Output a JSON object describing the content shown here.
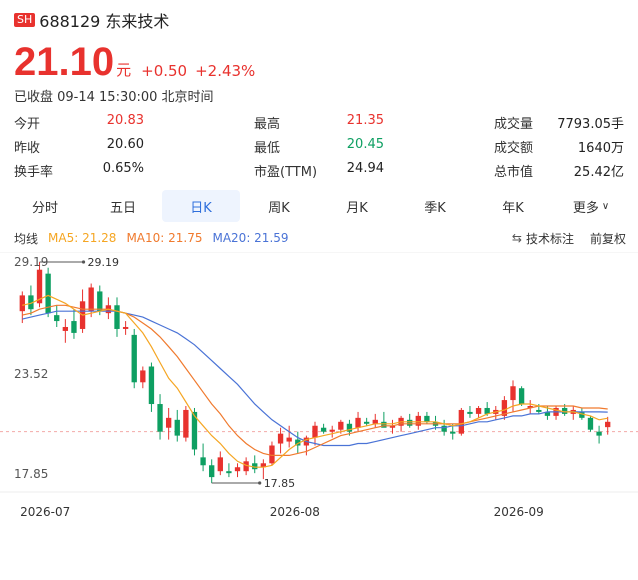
{
  "stock": {
    "market": "SH",
    "code_name": "688129 东来技术",
    "price": "21.10",
    "unit": "元",
    "change": "+0.50",
    "change_pct": "+2.43%",
    "status": "已收盘 09-14 15:30:00 北京时间"
  },
  "stats": [
    [
      {
        "label": "今开",
        "value": "20.83",
        "tone": "red"
      },
      {
        "label": "最高",
        "value": "21.35",
        "tone": "red"
      },
      {
        "label": "成交量",
        "value": "7793.05手",
        "tone": ""
      }
    ],
    [
      {
        "label": "昨收",
        "value": "20.60",
        "tone": ""
      },
      {
        "label": "最低",
        "value": "20.45",
        "tone": "green"
      },
      {
        "label": "成交额",
        "value": "1640万",
        "tone": ""
      }
    ],
    [
      {
        "label": "换手率",
        "value": "0.65%",
        "tone": ""
      },
      {
        "label": "市盈(TTM)",
        "value": "24.94",
        "tone": ""
      },
      {
        "label": "总市值",
        "value": "25.42亿",
        "tone": ""
      }
    ]
  ],
  "tabs": [
    {
      "label": "分时",
      "active": false
    },
    {
      "label": "五日",
      "active": false
    },
    {
      "label": "日K",
      "active": true
    },
    {
      "label": "周K",
      "active": false
    },
    {
      "label": "月K",
      "active": false
    },
    {
      "label": "季K",
      "active": false
    },
    {
      "label": "年K",
      "active": false
    },
    {
      "label": "更多",
      "active": false,
      "dropdown": true
    }
  ],
  "ma": {
    "title": "均线",
    "ma5": "MA5: 21.28",
    "ma10": "MA10: 21.75",
    "ma20": "MA20: 21.59",
    "tools_label": "技术标注",
    "tools_icon": "swap-icon",
    "adjust_label": "前复权"
  },
  "colors": {
    "up": "#e8322e",
    "down": "#0e9f62",
    "ma5": "#f5a623",
    "ma10": "#f07a2e",
    "ma20": "#4a73d6",
    "accent": "#2f6fdc"
  },
  "chart_data": {
    "type": "candlestick",
    "y_ticks": [
      "29.19",
      "23.52",
      "17.85"
    ],
    "x_ticks": [
      {
        "label": "2026-07",
        "index": 3
      },
      {
        "label": "2026-08",
        "index": 32
      },
      {
        "label": "2026-09",
        "index": 58
      }
    ],
    "high_label": "29.19",
    "low_label": "17.85",
    "ylim": [
      17.85,
      29.19
    ],
    "prev_close": 20.6,
    "candles": [
      [
        26.7,
        27.7,
        26.1,
        27.5
      ],
      [
        27.5,
        28.0,
        26.5,
        26.8
      ],
      [
        27.1,
        29.19,
        26.9,
        28.8
      ],
      [
        28.6,
        28.9,
        26.4,
        26.6
      ],
      [
        26.5,
        27.0,
        25.9,
        26.2
      ],
      [
        25.7,
        26.3,
        25.1,
        25.9
      ],
      [
        26.2,
        26.8,
        25.3,
        25.6
      ],
      [
        25.8,
        27.8,
        25.6,
        27.2
      ],
      [
        26.7,
        28.1,
        26.4,
        27.9
      ],
      [
        27.7,
        28.0,
        26.5,
        26.7
      ],
      [
        26.6,
        27.4,
        26.3,
        27.0
      ],
      [
        27.0,
        27.4,
        25.4,
        25.8
      ],
      [
        25.8,
        26.2,
        25.5,
        25.9
      ],
      [
        25.5,
        25.8,
        22.8,
        23.1
      ],
      [
        23.1,
        23.9,
        22.8,
        23.7
      ],
      [
        23.9,
        24.1,
        21.6,
        22.0
      ],
      [
        22.0,
        22.5,
        20.2,
        20.6
      ],
      [
        20.8,
        21.8,
        20.2,
        21.3
      ],
      [
        21.2,
        21.7,
        20.1,
        20.4
      ],
      [
        20.3,
        21.9,
        20.1,
        21.7
      ],
      [
        21.6,
        21.8,
        19.4,
        19.7
      ],
      [
        19.3,
        20.0,
        18.6,
        18.9
      ],
      [
        18.9,
        19.2,
        18.0,
        18.3
      ],
      [
        18.6,
        19.6,
        18.4,
        19.3
      ],
      [
        18.6,
        19.0,
        18.3,
        18.5
      ],
      [
        18.6,
        19.0,
        18.3,
        18.8
      ],
      [
        18.6,
        19.3,
        18.4,
        19.1
      ],
      [
        19.0,
        19.4,
        18.5,
        18.7
      ],
      [
        18.8,
        19.2,
        18.2,
        19.0
      ],
      [
        19.0,
        20.1,
        18.9,
        19.9
      ],
      [
        20.0,
        20.8,
        19.5,
        20.5
      ],
      [
        20.1,
        20.9,
        19.8,
        20.3
      ],
      [
        20.2,
        20.6,
        19.5,
        19.9
      ],
      [
        19.9,
        20.4,
        19.4,
        20.3
      ],
      [
        20.3,
        21.1,
        19.9,
        20.9
      ],
      [
        20.8,
        21.0,
        20.5,
        20.6
      ],
      [
        20.6,
        20.9,
        20.3,
        20.7
      ],
      [
        20.7,
        21.2,
        20.5,
        21.1
      ],
      [
        21.0,
        21.2,
        20.4,
        20.6
      ],
      [
        20.8,
        21.6,
        20.6,
        21.3
      ],
      [
        21.1,
        21.3,
        20.9,
        21.0
      ],
      [
        21.0,
        21.5,
        20.8,
        21.2
      ],
      [
        21.1,
        21.6,
        20.9,
        20.8
      ],
      [
        20.8,
        21.2,
        20.5,
        20.9
      ],
      [
        20.9,
        21.4,
        20.6,
        21.3
      ],
      [
        21.2,
        21.5,
        20.8,
        20.9
      ],
      [
        20.9,
        21.6,
        20.7,
        21.4
      ],
      [
        21.4,
        21.6,
        21.0,
        21.1
      ],
      [
        21.1,
        21.4,
        20.7,
        20.9
      ],
      [
        20.9,
        21.2,
        20.4,
        20.6
      ],
      [
        20.6,
        21.0,
        20.2,
        20.5
      ],
      [
        20.5,
        21.8,
        20.4,
        21.7
      ],
      [
        21.6,
        21.9,
        21.3,
        21.5
      ],
      [
        21.5,
        21.9,
        21.3,
        21.8
      ],
      [
        21.8,
        22.1,
        21.4,
        21.5
      ],
      [
        21.5,
        21.9,
        21.2,
        21.7
      ],
      [
        21.4,
        22.4,
        21.2,
        22.2
      ],
      [
        22.2,
        23.2,
        21.6,
        22.9
      ],
      [
        22.8,
        22.9,
        21.9,
        22.0
      ],
      [
        21.8,
        22.2,
        21.5,
        21.9
      ],
      [
        21.7,
        22.0,
        21.5,
        21.6
      ],
      [
        21.6,
        21.9,
        21.2,
        21.4
      ],
      [
        21.4,
        21.9,
        21.2,
        21.8
      ],
      [
        21.8,
        22.0,
        21.4,
        21.5
      ],
      [
        21.5,
        21.9,
        21.2,
        21.7
      ],
      [
        21.6,
        21.8,
        21.2,
        21.3
      ],
      [
        21.3,
        21.4,
        20.6,
        20.7
      ],
      [
        20.6,
        20.9,
        20.0,
        20.4
      ],
      [
        20.83,
        21.35,
        20.45,
        21.1
      ]
    ],
    "ma5": [
      27.0,
      27.1,
      27.3,
      27.5,
      27.3,
      27.1,
      26.8,
      26.5,
      26.6,
      26.7,
      26.8,
      26.7,
      26.6,
      26.1,
      25.6,
      24.9,
      24.1,
      23.3,
      22.8,
      22.1,
      21.4,
      20.9,
      20.4,
      20.0,
      19.5,
      19.1,
      18.9,
      18.8,
      18.8,
      18.9,
      19.3,
      19.7,
      20.0,
      20.2,
      20.3,
      20.4,
      20.5,
      20.6,
      20.7,
      20.8,
      20.9,
      21.0,
      21.0,
      21.0,
      21.1,
      21.1,
      21.1,
      21.1,
      21.1,
      21.0,
      20.9,
      21.0,
      21.1,
      21.3,
      21.5,
      21.6,
      21.7,
      21.9,
      22.0,
      22.0,
      21.9,
      21.8,
      21.7,
      21.6,
      21.6,
      21.5,
      21.4,
      21.2,
      21.28
    ],
    "ma10": [
      26.5,
      26.6,
      26.8,
      26.9,
      27.0,
      27.0,
      26.9,
      26.8,
      26.8,
      26.8,
      26.8,
      26.7,
      26.6,
      26.4,
      26.1,
      25.8,
      25.4,
      24.9,
      24.4,
      23.8,
      23.2,
      22.6,
      22.0,
      21.5,
      20.9,
      20.4,
      20.0,
      19.7,
      19.5,
      19.4,
      19.4,
      19.4,
      19.5,
      19.6,
      19.8,
      20.0,
      20.2,
      20.4,
      20.5,
      20.6,
      20.7,
      20.8,
      20.9,
      20.9,
      21.0,
      21.0,
      21.0,
      21.0,
      21.0,
      21.0,
      21.0,
      21.0,
      21.1,
      21.2,
      21.3,
      21.4,
      21.5,
      21.6,
      21.7,
      21.8,
      21.9,
      21.9,
      21.9,
      21.9,
      21.9,
      21.8,
      21.8,
      21.8,
      21.75
    ],
    "ma20": [
      26.3,
      26.4,
      26.5,
      26.6,
      26.7,
      26.7,
      26.7,
      26.7,
      26.7,
      26.7,
      26.7,
      26.7,
      26.6,
      26.5,
      26.4,
      26.2,
      26.0,
      25.8,
      25.6,
      25.3,
      25.0,
      24.6,
      24.2,
      23.8,
      23.4,
      23.0,
      22.5,
      22.0,
      21.6,
      21.2,
      20.9,
      20.6,
      20.3,
      20.1,
      20.0,
      19.9,
      19.9,
      19.9,
      19.9,
      20.0,
      20.0,
      20.1,
      20.2,
      20.3,
      20.4,
      20.5,
      20.6,
      20.7,
      20.8,
      20.8,
      20.9,
      20.9,
      21.0,
      21.1,
      21.1,
      21.2,
      21.3,
      21.4,
      21.4,
      21.5,
      21.5,
      21.6,
      21.6,
      21.6,
      21.6,
      21.6,
      21.6,
      21.6,
      21.59
    ]
  }
}
